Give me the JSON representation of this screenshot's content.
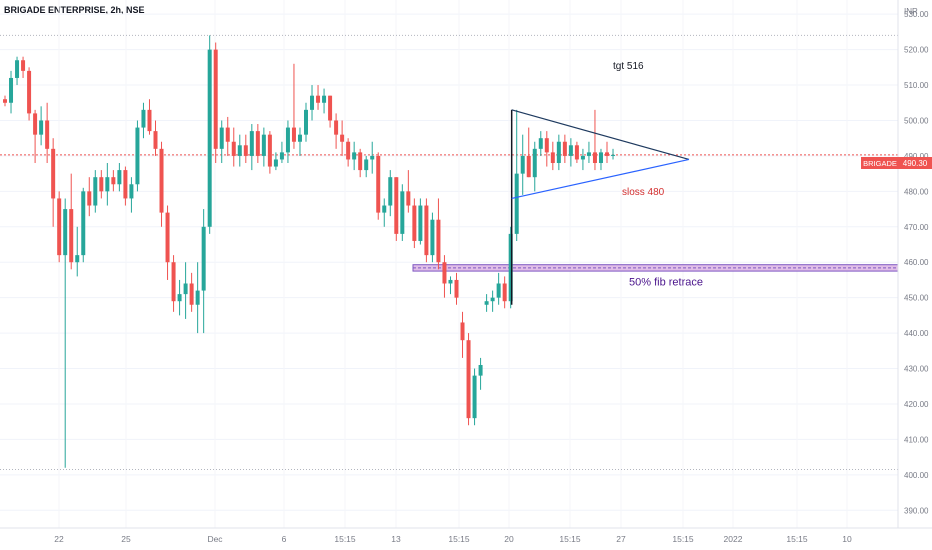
{
  "header": {
    "title": "BRIGADE ENTERPRISE, 2h, NSE",
    "currency": "INR"
  },
  "price_label": {
    "symbol": "BRIGADE",
    "value": "490.30"
  },
  "annotations": {
    "target": "tgt 516",
    "stoploss": "sloss 480",
    "fib": "50% fib retrace"
  },
  "colors": {
    "up": "#26a69a",
    "down": "#ef5350",
    "fib_band": "#9c27b0",
    "triangle": "#2962ff",
    "price_line": "#ef5350"
  },
  "chart_data": {
    "type": "candlestick",
    "title": "BRIGADE ENTERPRISE, 2h, NSE",
    "ylim": [
      385,
      534
    ],
    "y_ticks": [
      530,
      520,
      510,
      500,
      490,
      480,
      470,
      460,
      450,
      440,
      430,
      420,
      410,
      400,
      390
    ],
    "x_tick_labels": [
      "22",
      "25",
      "Dec",
      "6",
      "15:15",
      "13",
      "15:15",
      "20",
      "15:15",
      "27",
      "15:15",
      "2022",
      "15:15",
      "10"
    ],
    "last_price": 490.3,
    "reference_levels": [
      524,
      401.5
    ],
    "fib_zone": [
      457.5,
      459.3
    ],
    "candles": [
      [
        506,
        507,
        504,
        505
      ],
      [
        505,
        514,
        502,
        512
      ],
      [
        512,
        518,
        510,
        517
      ],
      [
        517,
        518,
        512,
        514
      ],
      [
        514,
        515,
        500,
        502
      ],
      [
        502,
        503,
        488,
        496
      ],
      [
        496,
        504,
        493,
        500
      ],
      [
        500,
        505,
        488,
        492
      ],
      [
        492,
        495,
        470,
        478
      ],
      [
        478,
        480,
        460,
        462
      ],
      [
        462,
        478,
        402,
        475
      ],
      [
        475,
        485,
        458,
        460
      ],
      [
        460,
        470,
        456,
        462
      ],
      [
        462,
        481,
        460,
        480
      ],
      [
        480,
        484,
        473,
        476
      ],
      [
        476,
        486,
        474,
        484
      ],
      [
        484,
        486,
        478,
        480
      ],
      [
        480,
        488,
        476,
        484
      ],
      [
        484,
        486,
        480,
        482
      ],
      [
        482,
        488,
        480,
        486
      ],
      [
        486,
        487,
        476,
        478
      ],
      [
        478,
        484,
        474,
        482
      ],
      [
        482,
        500,
        480,
        498
      ],
      [
        498,
        505,
        495,
        503
      ],
      [
        503,
        506,
        496,
        497
      ],
      [
        497,
        500,
        490,
        492
      ],
      [
        492,
        494,
        470,
        474
      ],
      [
        474,
        476,
        455,
        460
      ],
      [
        460,
        462,
        446,
        449
      ],
      [
        449,
        455,
        445,
        451
      ],
      [
        451,
        460,
        444,
        454
      ],
      [
        454,
        457,
        446,
        448
      ],
      [
        448,
        460,
        440,
        452
      ],
      [
        452,
        475,
        440,
        470
      ],
      [
        470,
        524,
        468,
        520
      ],
      [
        520,
        522,
        488,
        492
      ],
      [
        492,
        500,
        488,
        498
      ],
      [
        498,
        501,
        490,
        494
      ],
      [
        494,
        498,
        487,
        490
      ],
      [
        490,
        496,
        487,
        493
      ],
      [
        493,
        496,
        488,
        490
      ],
      [
        490,
        499,
        486,
        497
      ],
      [
        497,
        499,
        488,
        490
      ],
      [
        490,
        498,
        487,
        496
      ],
      [
        496,
        497,
        485,
        487
      ],
      [
        487,
        491,
        486,
        489
      ],
      [
        489,
        494,
        488,
        491
      ],
      [
        491,
        500,
        488,
        498
      ],
      [
        498,
        516,
        492,
        494
      ],
      [
        494,
        498,
        490,
        496
      ],
      [
        496,
        505,
        494,
        503
      ],
      [
        503,
        510,
        500,
        507
      ],
      [
        507,
        510,
        503,
        505
      ],
      [
        505,
        509,
        502,
        507
      ],
      [
        507,
        507,
        498,
        500
      ],
      [
        500,
        502,
        492,
        496
      ],
      [
        496,
        500,
        490,
        494
      ],
      [
        494,
        495,
        487,
        489
      ],
      [
        489,
        494,
        486,
        491
      ],
      [
        491,
        492,
        484,
        486
      ],
      [
        486,
        490,
        484,
        489
      ],
      [
        489,
        494,
        485,
        490
      ],
      [
        490,
        491,
        472,
        474
      ],
      [
        474,
        478,
        470,
        476
      ],
      [
        476,
        486,
        473,
        484
      ],
      [
        484,
        484,
        466,
        468
      ],
      [
        468,
        482,
        466,
        480
      ],
      [
        480,
        486,
        474,
        476
      ],
      [
        476,
        478,
        464,
        466
      ],
      [
        466,
        478,
        465,
        476
      ],
      [
        476,
        478,
        460,
        462
      ],
      [
        462,
        474,
        460,
        472
      ],
      [
        472,
        478,
        458,
        460
      ],
      [
        460,
        462,
        450,
        454
      ],
      [
        454,
        456,
        451,
        455
      ],
      [
        455,
        457,
        448,
        450
      ],
      [
        443,
        446,
        433,
        438
      ],
      [
        438,
        440,
        414,
        416
      ],
      [
        416,
        430,
        414,
        428
      ],
      [
        428,
        433,
        424,
        431
      ],
      [
        448,
        451,
        446,
        449
      ],
      [
        449,
        452,
        446,
        450
      ],
      [
        450,
        457,
        448,
        454
      ],
      [
        454,
        456,
        447,
        449
      ],
      [
        449,
        470,
        447,
        468
      ],
      [
        468,
        503,
        466,
        485
      ],
      [
        485,
        496,
        479,
        490
      ],
      [
        490,
        498,
        484,
        484
      ],
      [
        484,
        494,
        480,
        492
      ],
      [
        492,
        497,
        490,
        495
      ],
      [
        495,
        497,
        487,
        491
      ],
      [
        491,
        494,
        486,
        488
      ],
      [
        488,
        496,
        486,
        494
      ],
      [
        494,
        496,
        488,
        490
      ],
      [
        490,
        495,
        487,
        493
      ],
      [
        493,
        494,
        488,
        489
      ],
      [
        489,
        492,
        486,
        490
      ],
      [
        490,
        494,
        488,
        491
      ],
      [
        491,
        503,
        486,
        488
      ],
      [
        488,
        492,
        486,
        491
      ],
      [
        491,
        494,
        488,
        490
      ],
      [
        490,
        492,
        489,
        490.3
      ]
    ]
  }
}
